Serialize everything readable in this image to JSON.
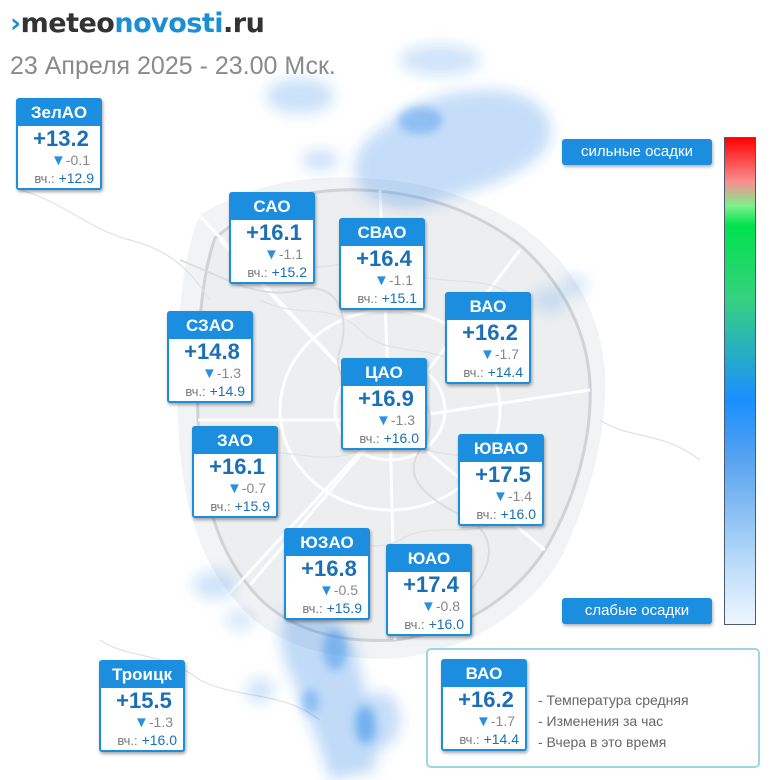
{
  "brand": {
    "mark": "›",
    "part1": "meteo",
    "part2": "novosti",
    "part3": ".ru"
  },
  "subtitle": "23 Апреля 2025 - 23.00 Мск.",
  "yesterday_label": "вч.:",
  "precip_scale": {
    "high_label": "сильные осадки",
    "low_label": "слабые осадки"
  },
  "colors": {
    "accent": "#1c8ee0",
    "temp": "#1b6fb5",
    "delta_arrow": "#2b8fe0"
  },
  "districts": [
    {
      "id": "zelao",
      "name": "ЗелАО",
      "temp": "+13.2",
      "delta": "-0.1",
      "yesterday": "+12.9"
    },
    {
      "id": "sao",
      "name": "САО",
      "temp": "+16.1",
      "delta": "-1.1",
      "yesterday": "+15.2"
    },
    {
      "id": "svao",
      "name": "СВАО",
      "temp": "+16.4",
      "delta": "-1.1",
      "yesterday": "+15.1"
    },
    {
      "id": "vao",
      "name": "ВАО",
      "temp": "+16.2",
      "delta": "-1.7",
      "yesterday": "+14.4"
    },
    {
      "id": "szao",
      "name": "СЗАО",
      "temp": "+14.8",
      "delta": "-1.3",
      "yesterday": "+14.9"
    },
    {
      "id": "cao",
      "name": "ЦАО",
      "temp": "+16.9",
      "delta": "-1.3",
      "yesterday": "+16.0"
    },
    {
      "id": "zao",
      "name": "ЗАО",
      "temp": "+16.1",
      "delta": "-0.7",
      "yesterday": "+15.9"
    },
    {
      "id": "yuvao",
      "name": "ЮВАО",
      "temp": "+17.5",
      "delta": "-1.4",
      "yesterday": "+16.0"
    },
    {
      "id": "yuzao",
      "name": "ЮЗАО",
      "temp": "+16.8",
      "delta": "-0.5",
      "yesterday": "+15.9"
    },
    {
      "id": "yuao",
      "name": "ЮАО",
      "temp": "+17.4",
      "delta": "-0.8",
      "yesterday": "+16.0"
    },
    {
      "id": "troitsk",
      "name": "Троицк",
      "temp": "+15.5",
      "delta": "-1.3",
      "yesterday": "+16.0"
    }
  ],
  "legend": {
    "sample": {
      "name": "ВАО",
      "temp": "+16.2",
      "delta": "-1.7",
      "yesterday": "+14.4"
    },
    "lines": [
      "- Температура средняя",
      "- Изменения за час",
      "- Вчера в это время"
    ]
  }
}
